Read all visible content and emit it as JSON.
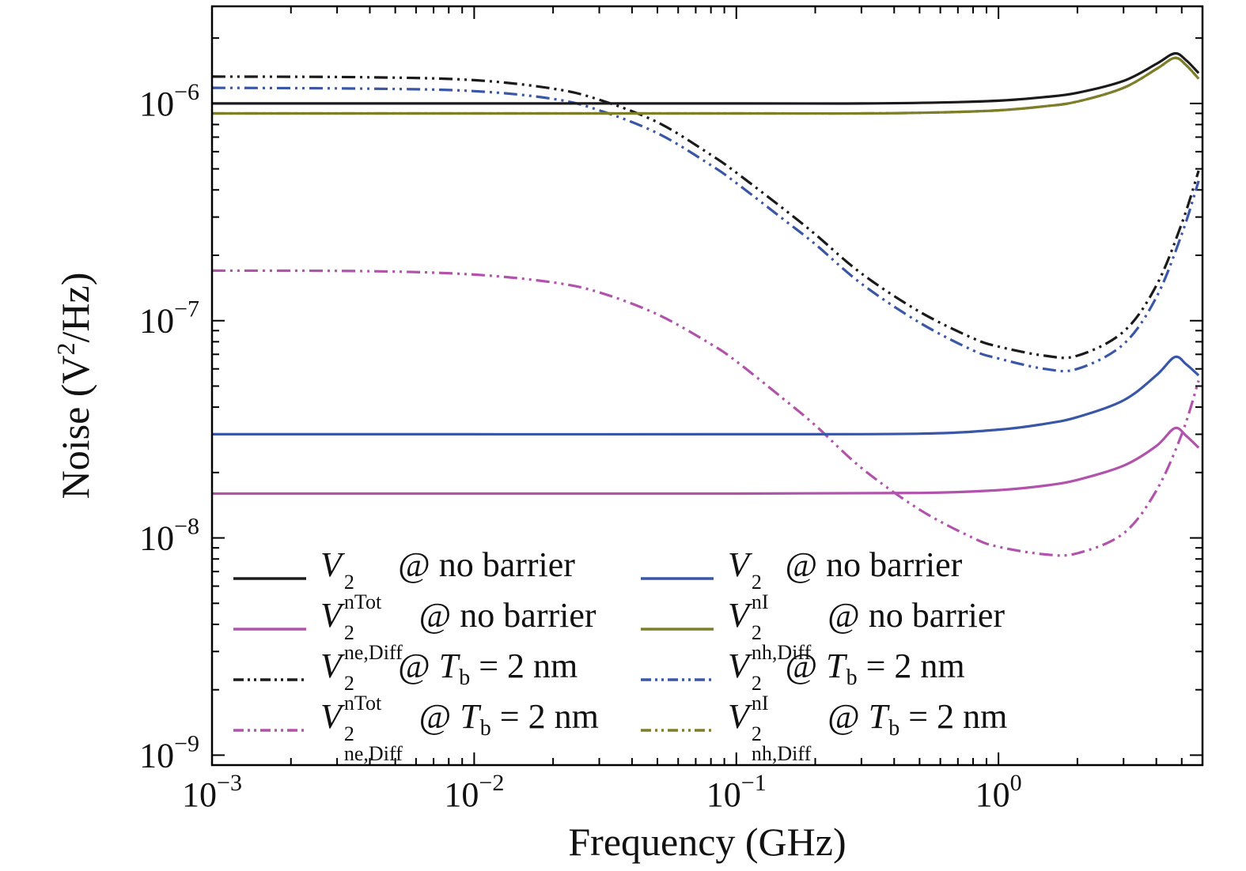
{
  "colors": {
    "black": "#1a1a1a",
    "blue": "#3a57a7",
    "magenta": "#b153ab",
    "olive": "#7d7d2a"
  },
  "chart_data": {
    "type": "line",
    "title": "",
    "xlabel": "Frequency (GHz)",
    "ylabel": "Noise (V^2/Hz)",
    "ylabel_parts": [
      {
        "t": "Noise (V"
      },
      {
        "t": "2",
        "sup": true
      },
      {
        "t": "/Hz)"
      }
    ],
    "log_x": true,
    "log_y": true,
    "x_range": [
      0.001,
      6.0
    ],
    "y_range": [
      9e-10,
      2.8e-06
    ],
    "x_major_exponents": [
      -3,
      -2,
      -1,
      0
    ],
    "y_major_exponents": [
      -9,
      -8,
      -7,
      -6
    ],
    "tick_base": "10",
    "grid": false,
    "legend_position": "lower-center-inside",
    "series": [
      {
        "id": "vnh-diff-tb2nm",
        "name": "V^2_nh,Diff @ Tb = 2 nm",
        "color": "olive",
        "dash": "dashdotdot",
        "points": [
          [
            0.001,
            9e-07
          ],
          [
            0.01,
            9e-07
          ],
          [
            0.1,
            9e-07
          ],
          [
            0.3,
            9e-07
          ],
          [
            0.6,
            9.1e-07
          ],
          [
            1,
            9.3e-07
          ],
          [
            1.5,
            9.7e-07
          ],
          [
            2,
            1.02e-06
          ],
          [
            3,
            1.18e-06
          ],
          [
            4,
            1.44e-06
          ],
          [
            4.7,
            1.62e-06
          ],
          [
            5.2,
            1.5e-06
          ],
          [
            5.8,
            1.3e-06
          ]
        ]
      },
      {
        "id": "vntot-tb2nm",
        "name": "V^2_nTot @ Tb = 2 nm",
        "color": "black",
        "dash": "dashdotdot",
        "points": [
          [
            0.001,
            1.33e-06
          ],
          [
            0.004,
            1.32e-06
          ],
          [
            0.01,
            1.28e-06
          ],
          [
            0.02,
            1.17e-06
          ],
          [
            0.03,
            1.04e-06
          ],
          [
            0.05,
            8.2e-07
          ],
          [
            0.08,
            5.8e-07
          ],
          [
            0.1,
            4.8e-07
          ],
          [
            0.15,
            3.3e-07
          ],
          [
            0.2,
            2.5e-07
          ],
          [
            0.3,
            1.65e-07
          ],
          [
            0.5,
            1.1e-07
          ],
          [
            0.8,
            8.3e-08
          ],
          [
            1,
            7.6e-08
          ],
          [
            1.5,
            6.9e-08
          ],
          [
            2,
            6.9e-08
          ],
          [
            3,
            8.9e-08
          ],
          [
            4,
            1.45e-07
          ],
          [
            5,
            2.8e-07
          ],
          [
            5.8,
            4.9e-07
          ]
        ]
      },
      {
        "id": "vni-tb2nm",
        "name": "V^2_nI @ Tb = 2 nm",
        "color": "blue",
        "dash": "dashdotdot",
        "points": [
          [
            0.001,
            1.18e-06
          ],
          [
            0.004,
            1.17e-06
          ],
          [
            0.01,
            1.14e-06
          ],
          [
            0.02,
            1.05e-06
          ],
          [
            0.03,
            9.3e-07
          ],
          [
            0.05,
            7.3e-07
          ],
          [
            0.08,
            5.2e-07
          ],
          [
            0.1,
            4.3e-07
          ],
          [
            0.15,
            2.95e-07
          ],
          [
            0.2,
            2.25e-07
          ],
          [
            0.3,
            1.48e-07
          ],
          [
            0.5,
            9.8e-08
          ],
          [
            0.8,
            7.3e-08
          ],
          [
            1,
            6.7e-08
          ],
          [
            1.5,
            6e-08
          ],
          [
            2,
            6e-08
          ],
          [
            3,
            7.8e-08
          ],
          [
            4,
            1.28e-07
          ],
          [
            5,
            2.5e-07
          ],
          [
            5.8,
            4.4e-07
          ]
        ]
      },
      {
        "id": "vne-diff-tb2nm",
        "name": "V^2_ne,Diff @ Tb = 2 nm",
        "color": "magenta",
        "dash": "dashdotdot",
        "points": [
          [
            0.001,
            1.7e-07
          ],
          [
            0.004,
            1.69e-07
          ],
          [
            0.01,
            1.63e-07
          ],
          [
            0.02,
            1.5e-07
          ],
          [
            0.03,
            1.35e-07
          ],
          [
            0.05,
            1.07e-07
          ],
          [
            0.08,
            7.8e-08
          ],
          [
            0.1,
            6.5e-08
          ],
          [
            0.15,
            4.4e-08
          ],
          [
            0.2,
            3.3e-08
          ],
          [
            0.3,
            2.1e-08
          ],
          [
            0.5,
            1.35e-08
          ],
          [
            0.8,
            1e-08
          ],
          [
            1,
            9.1e-09
          ],
          [
            1.5,
            8.4e-09
          ],
          [
            2,
            8.5e-09
          ],
          [
            3,
            1.05e-08
          ],
          [
            4,
            1.65e-08
          ],
          [
            5,
            3e-08
          ],
          [
            5.8,
            5.3e-08
          ]
        ]
      },
      {
        "id": "vnh-diff-nobarrier",
        "name": "V^2_nh,Diff @ no barrier",
        "color": "olive",
        "dash": "solid",
        "points": [
          [
            0.001,
            9e-07
          ],
          [
            0.01,
            9e-07
          ],
          [
            0.1,
            9e-07
          ],
          [
            0.3,
            9e-07
          ],
          [
            0.6,
            9.1e-07
          ],
          [
            1,
            9.3e-07
          ],
          [
            1.5,
            9.7e-07
          ],
          [
            2,
            1.02e-06
          ],
          [
            3,
            1.18e-06
          ],
          [
            4,
            1.44e-06
          ],
          [
            4.7,
            1.62e-06
          ],
          [
            5.2,
            1.5e-06
          ],
          [
            5.8,
            1.3e-06
          ]
        ]
      },
      {
        "id": "vntot-nobarrier",
        "name": "V^2_nTot @ no barrier",
        "color": "black",
        "dash": "solid",
        "points": [
          [
            0.001,
            1e-06
          ],
          [
            0.01,
            1e-06
          ],
          [
            0.1,
            1e-06
          ],
          [
            0.3,
            1e-06
          ],
          [
            0.6,
            1.01e-06
          ],
          [
            1,
            1.03e-06
          ],
          [
            1.5,
            1.07e-06
          ],
          [
            2,
            1.12e-06
          ],
          [
            3,
            1.27e-06
          ],
          [
            4,
            1.52e-06
          ],
          [
            4.7,
            1.7e-06
          ],
          [
            5.2,
            1.58e-06
          ],
          [
            5.8,
            1.38e-06
          ]
        ]
      },
      {
        "id": "vni-nobarrier",
        "name": "V^2_nI @ no barrier",
        "color": "blue",
        "dash": "solid",
        "points": [
          [
            0.001,
            3e-08
          ],
          [
            0.01,
            3e-08
          ],
          [
            0.1,
            3e-08
          ],
          [
            0.5,
            3.02e-08
          ],
          [
            1,
            3.15e-08
          ],
          [
            1.5,
            3.35e-08
          ],
          [
            2,
            3.6e-08
          ],
          [
            3,
            4.3e-08
          ],
          [
            4,
            5.6e-08
          ],
          [
            4.7,
            6.8e-08
          ],
          [
            5.2,
            6.3e-08
          ],
          [
            5.8,
            5.6e-08
          ]
        ]
      },
      {
        "id": "vne-diff-nobarrier",
        "name": "V^2_ne,Diff @ no barrier",
        "color": "magenta",
        "dash": "solid",
        "points": [
          [
            0.001,
            1.6e-08
          ],
          [
            0.01,
            1.6e-08
          ],
          [
            0.1,
            1.6e-08
          ],
          [
            0.5,
            1.61e-08
          ],
          [
            1,
            1.66e-08
          ],
          [
            1.5,
            1.74e-08
          ],
          [
            2,
            1.85e-08
          ],
          [
            3,
            2.15e-08
          ],
          [
            4,
            2.65e-08
          ],
          [
            4.7,
            3.2e-08
          ],
          [
            5.2,
            2.95e-08
          ],
          [
            5.8,
            2.6e-08
          ]
        ]
      }
    ]
  },
  "legend": {
    "items": [
      {
        "name": "vntot-nobarrier",
        "color": "black",
        "dash": "solid",
        "parts": [
          {
            "k": "var",
            "t": "V"
          },
          {
            "k": "supsub",
            "sup": "2",
            "sub": "nTot"
          },
          {
            "k": "text",
            "t": " @ no barrier"
          }
        ]
      },
      {
        "name": "vne-diff-nobarrier",
        "color": "magenta",
        "dash": "solid",
        "parts": [
          {
            "k": "var",
            "t": "V"
          },
          {
            "k": "supsub",
            "sup": "2",
            "sub": "ne,Diff"
          },
          {
            "k": "text",
            "t": " @ no barrier"
          }
        ]
      },
      {
        "name": "vntot-tb2nm",
        "color": "black",
        "dash": "dashdotdot",
        "parts": [
          {
            "k": "var",
            "t": "V"
          },
          {
            "k": "supsub",
            "sup": "2",
            "sub": "nTot"
          },
          {
            "k": "text",
            "t": " @ "
          },
          {
            "k": "var",
            "t": "T"
          },
          {
            "k": "sub",
            "t": "b"
          },
          {
            "k": "text",
            "t": " = 2 nm"
          }
        ]
      },
      {
        "name": "vne-diff-tb2nm",
        "color": "magenta",
        "dash": "dashdotdot",
        "parts": [
          {
            "k": "var",
            "t": "V"
          },
          {
            "k": "supsub",
            "sup": "2",
            "sub": "ne,Diff"
          },
          {
            "k": "text",
            "t": " @ "
          },
          {
            "k": "var",
            "t": "T"
          },
          {
            "k": "sub",
            "t": "b"
          },
          {
            "k": "text",
            "t": " = 2 nm"
          }
        ]
      },
      {
        "name": "vni-nobarrier",
        "color": "blue",
        "dash": "solid",
        "parts": [
          {
            "k": "var",
            "t": "V"
          },
          {
            "k": "supsub",
            "sup": "2",
            "sub": "nI"
          },
          {
            "k": "text",
            "t": " @ no barrier"
          }
        ]
      },
      {
        "name": "vnh-diff-nobarrier",
        "color": "olive",
        "dash": "solid",
        "parts": [
          {
            "k": "var",
            "t": "V"
          },
          {
            "k": "supsub",
            "sup": "2",
            "sub": "nh,Diff"
          },
          {
            "k": "text",
            "t": " @ no barrier"
          }
        ]
      },
      {
        "name": "vni-tb2nm",
        "color": "blue",
        "dash": "dashdotdot",
        "parts": [
          {
            "k": "var",
            "t": "V"
          },
          {
            "k": "supsub",
            "sup": "2",
            "sub": "nI"
          },
          {
            "k": "text",
            "t": " @ "
          },
          {
            "k": "var",
            "t": "T"
          },
          {
            "k": "sub",
            "t": "b"
          },
          {
            "k": "text",
            "t": " = 2 nm"
          }
        ]
      },
      {
        "name": "vnh-diff-tb2nm",
        "color": "olive",
        "dash": "dashdotdot",
        "parts": [
          {
            "k": "var",
            "t": "V"
          },
          {
            "k": "supsub",
            "sup": "2",
            "sub": "nh,Diff"
          },
          {
            "k": "text",
            "t": " @ "
          },
          {
            "k": "var",
            "t": "T"
          },
          {
            "k": "sub",
            "t": "b"
          },
          {
            "k": "text",
            "t": " = 2 nm"
          }
        ]
      }
    ]
  }
}
